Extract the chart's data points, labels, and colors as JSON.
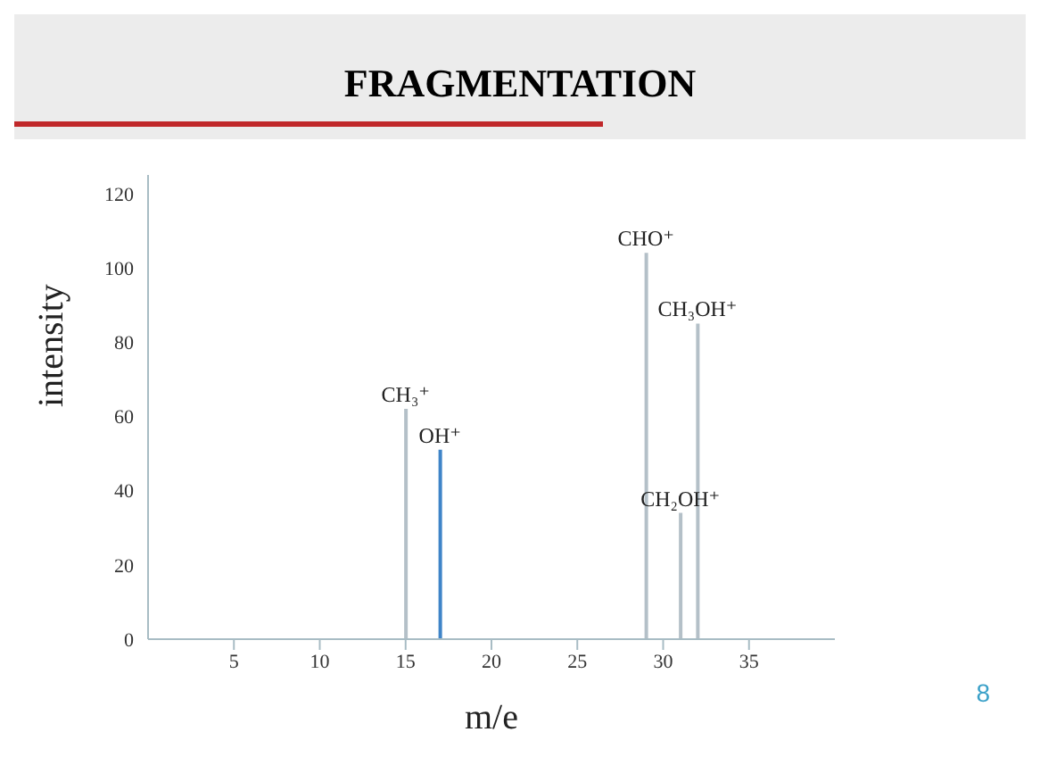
{
  "chart_data": {
    "type": "bar",
    "title": "FRAGMENTATION",
    "xlabel": "m/e",
    "ylabel": "intensity",
    "x": [
      15,
      17,
      29,
      31,
      32
    ],
    "values": [
      62,
      51,
      104,
      34,
      85
    ],
    "colors": [
      "#b4c0c8",
      "#3f84c8",
      "#b4c0c8",
      "#b4c0c8",
      "#b4c0c8"
    ],
    "xlim": [
      0,
      40
    ],
    "xticks": [
      5,
      10,
      15,
      20,
      25,
      30,
      35
    ],
    "ylim": [
      0,
      125
    ],
    "yticks": [
      0,
      20,
      40,
      60,
      80,
      100,
      120
    ],
    "grid": false,
    "legend": false,
    "annotations": [
      {
        "text": "CH₃⁺",
        "x": 15,
        "y": 62
      },
      {
        "text": "OH⁺",
        "x": 17,
        "y": 51
      },
      {
        "text": "CHO⁺",
        "x": 29,
        "y": 104
      },
      {
        "text": "CH₂OH⁺",
        "x": 31,
        "y": 34
      },
      {
        "text": "CH₃OH⁺",
        "x": 32,
        "y": 85
      },
      "8"
    ]
  }
}
